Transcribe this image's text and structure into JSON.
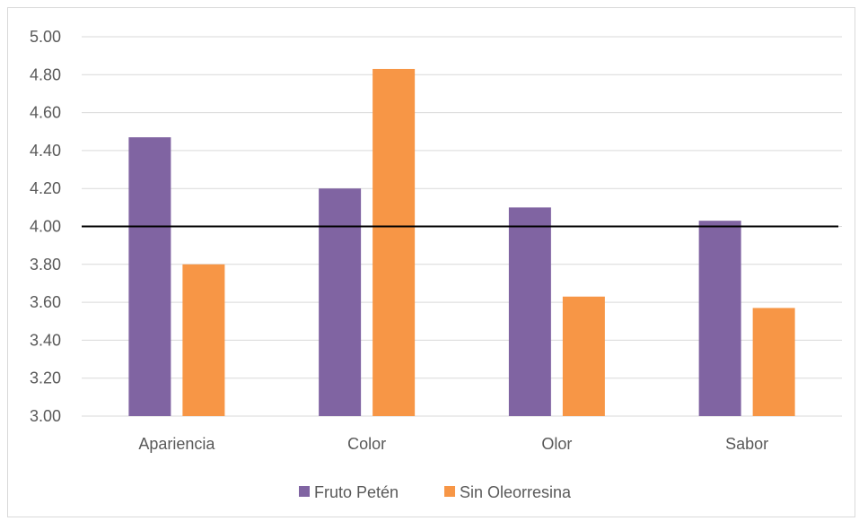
{
  "chart_data": {
    "type": "bar",
    "title": "",
    "xlabel": "",
    "ylabel": "",
    "categories": [
      "Apariencia",
      "Color",
      "Olor",
      "Sabor"
    ],
    "series": [
      {
        "name": "Fruto Petén",
        "values": [
          4.47,
          4.2,
          4.1,
          4.03
        ],
        "color": "#8064a2"
      },
      {
        "name": "Sin Oleorresina",
        "values": [
          3.8,
          4.83,
          3.63,
          3.57
        ],
        "color": "#f79646"
      }
    ],
    "ylim": [
      3.0,
      5.0
    ],
    "yticks": [
      "3.00",
      "3.20",
      "3.40",
      "3.60",
      "3.80",
      "4.00",
      "4.20",
      "4.40",
      "4.60",
      "4.80",
      "5.00"
    ],
    "reference_line": {
      "value": 4.0,
      "color": "#000000"
    },
    "grid": true,
    "legend_position": "bottom",
    "gridline_color": "#d9d9d9"
  }
}
